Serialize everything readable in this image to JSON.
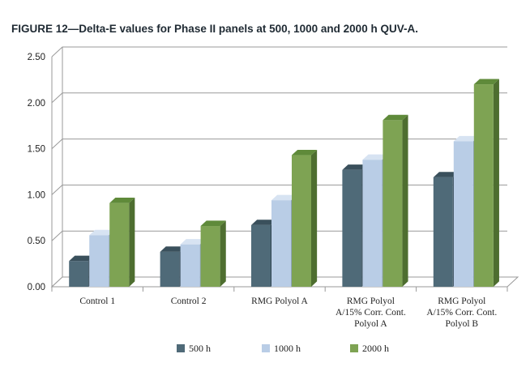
{
  "chart_data": {
    "type": "bar",
    "title": "FIGURE 12—Delta-E values for Phase II panels at 500, 1000 and 2000 h QUV-A.",
    "categories": [
      [
        "Control 1"
      ],
      [
        "Control 2"
      ],
      [
        "RMG Polyol A"
      ],
      [
        "RMG Polyol",
        "A/15% Corr. Cont.",
        "Polyol A"
      ],
      [
        "RMG Polyol",
        "A/15% Corr. Cont.",
        "Polyol B"
      ]
    ],
    "series": [
      {
        "name": "500 h",
        "values": [
          0.28,
          0.38,
          0.67,
          1.27,
          1.19
        ]
      },
      {
        "name": "1000 h",
        "values": [
          0.56,
          0.46,
          0.94,
          1.38,
          1.58
        ]
      },
      {
        "name": "2000 h",
        "values": [
          0.91,
          0.66,
          1.43,
          1.81,
          2.2
        ]
      }
    ],
    "yticks": [
      "0.00",
      "0.50",
      "1.00",
      "1.50",
      "2.00",
      "2.50"
    ],
    "ylim": [
      0,
      2.5
    ],
    "grid": true,
    "legend_position": "bottom",
    "colors": {
      "500 h": {
        "front": "#4f6a78",
        "top": "#3a505c",
        "side": "#2f4350"
      },
      "1000 h": {
        "front": "#b9cde6",
        "top": "#d7e3f2",
        "side": "#8fa4bd"
      },
      "2000 h": {
        "front": "#7ea353",
        "top": "#5f8a3a",
        "side": "#4e6e30"
      }
    }
  }
}
